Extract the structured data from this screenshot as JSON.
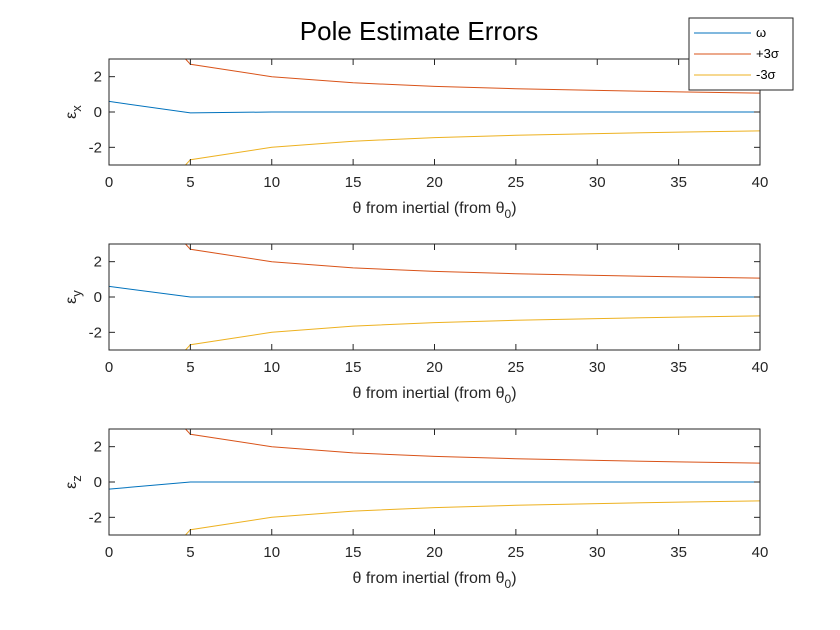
{
  "title": "Pole Estimate Errors",
  "colors": {
    "omega": "#0072BD",
    "plus3sigma": "#D95319",
    "minus3sigma": "#EDB120",
    "axis": "#262626"
  },
  "legend": {
    "placement": "top-right",
    "entries": [
      {
        "key": "omega",
        "label": "ω"
      },
      {
        "key": "plus3sigma",
        "label": "+3σ"
      },
      {
        "key": "minus3sigma",
        "label": "-3σ"
      }
    ]
  },
  "chart_data": [
    {
      "type": "line",
      "ylabel": "ε",
      "ylabel_sub": "x",
      "xlabel": "θ from inertial (from θ",
      "xlabel_sub": "0",
      "xlabel_end": ")",
      "xlim": [
        0,
        40
      ],
      "ylim": [
        -3,
        3
      ],
      "xticks": [
        0,
        5,
        10,
        15,
        20,
        25,
        30,
        35,
        40
      ],
      "yticks": [
        -2,
        0,
        2
      ],
      "grid": false,
      "series": [
        {
          "key": "omega",
          "x": [
            0,
            5,
            10,
            15,
            20,
            25,
            30,
            35,
            40
          ],
          "y": [
            0.6,
            -0.05,
            0.0,
            0.0,
            0.0,
            0.0,
            0.0,
            0.0,
            0.0
          ]
        },
        {
          "key": "plus3sigma",
          "x": [
            4.7,
            5,
            10,
            15,
            20,
            25,
            30,
            35,
            40
          ],
          "y": [
            3.0,
            2.7,
            2.0,
            1.65,
            1.45,
            1.32,
            1.22,
            1.14,
            1.07
          ]
        },
        {
          "key": "minus3sigma",
          "x": [
            4.7,
            5,
            10,
            15,
            20,
            25,
            30,
            35,
            40
          ],
          "y": [
            -3.0,
            -2.7,
            -2.0,
            -1.65,
            -1.45,
            -1.32,
            -1.22,
            -1.14,
            -1.07
          ]
        }
      ]
    },
    {
      "type": "line",
      "ylabel": "ε",
      "ylabel_sub": "y",
      "xlabel": "θ from inertial (from θ",
      "xlabel_sub": "0",
      "xlabel_end": ")",
      "xlim": [
        0,
        40
      ],
      "ylim": [
        -3,
        3
      ],
      "xticks": [
        0,
        5,
        10,
        15,
        20,
        25,
        30,
        35,
        40
      ],
      "yticks": [
        -2,
        0,
        2
      ],
      "grid": false,
      "series": [
        {
          "key": "omega",
          "x": [
            0,
            5,
            10,
            15,
            20,
            25,
            30,
            35,
            40
          ],
          "y": [
            0.6,
            0.0,
            0.0,
            0.0,
            0.0,
            0.0,
            0.0,
            0.0,
            0.0
          ]
        },
        {
          "key": "plus3sigma",
          "x": [
            4.7,
            5,
            10,
            15,
            20,
            25,
            30,
            35,
            40
          ],
          "y": [
            3.0,
            2.7,
            2.0,
            1.65,
            1.45,
            1.32,
            1.22,
            1.14,
            1.07
          ]
        },
        {
          "key": "minus3sigma",
          "x": [
            4.7,
            5,
            10,
            15,
            20,
            25,
            30,
            35,
            40
          ],
          "y": [
            -3.0,
            -2.7,
            -2.0,
            -1.65,
            -1.45,
            -1.32,
            -1.22,
            -1.14,
            -1.07
          ]
        }
      ]
    },
    {
      "type": "line",
      "ylabel": "ε",
      "ylabel_sub": "z",
      "xlabel": "θ from inertial (from θ",
      "xlabel_sub": "0",
      "xlabel_end": ")",
      "xlim": [
        0,
        40
      ],
      "ylim": [
        -3,
        3
      ],
      "xticks": [
        0,
        5,
        10,
        15,
        20,
        25,
        30,
        35,
        40
      ],
      "yticks": [
        -2,
        0,
        2
      ],
      "grid": false,
      "series": [
        {
          "key": "omega",
          "x": [
            0,
            5,
            10,
            15,
            20,
            25,
            30,
            35,
            40
          ],
          "y": [
            -0.4,
            0.0,
            0.0,
            0.0,
            0.0,
            0.0,
            0.0,
            0.0,
            0.0
          ]
        },
        {
          "key": "plus3sigma",
          "x": [
            4.7,
            5,
            10,
            15,
            20,
            25,
            30,
            35,
            40
          ],
          "y": [
            3.0,
            2.7,
            2.0,
            1.65,
            1.45,
            1.32,
            1.22,
            1.14,
            1.07
          ]
        },
        {
          "key": "minus3sigma",
          "x": [
            4.7,
            5,
            10,
            15,
            20,
            25,
            30,
            35,
            40
          ],
          "y": [
            -3.0,
            -2.7,
            -2.0,
            -1.65,
            -1.45,
            -1.32,
            -1.22,
            -1.14,
            -1.07
          ]
        }
      ]
    }
  ]
}
